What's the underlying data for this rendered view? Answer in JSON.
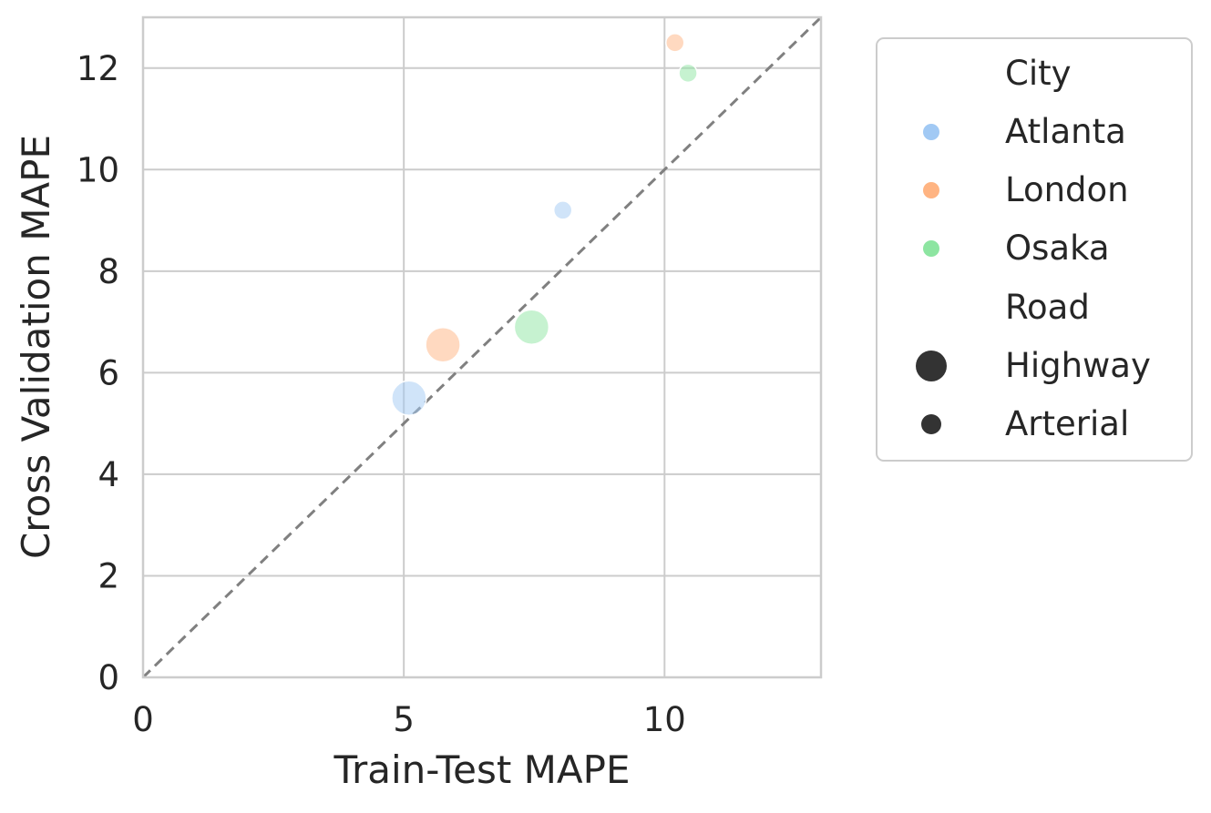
{
  "chart_data": {
    "type": "scatter",
    "xlabel": "Train-Test MAPE",
    "ylabel": "Cross Validation MAPE",
    "xlim": [
      0,
      13
    ],
    "ylim": [
      0,
      13
    ],
    "x_ticks": [
      0,
      5,
      10
    ],
    "y_ticks": [
      0,
      2,
      4,
      6,
      8,
      10,
      12
    ],
    "grid": true,
    "reference_line": {
      "style": "dashed",
      "color": "#808080",
      "from": [
        0,
        0
      ],
      "to": [
        13,
        13
      ]
    },
    "point_opacity": 0.5,
    "hue": {
      "title": "City",
      "levels": [
        {
          "name": "Atlanta",
          "color": "#a1c9f4"
        },
        {
          "name": "London",
          "color": "#ffb482"
        },
        {
          "name": "Osaka",
          "color": "#8de5a1"
        }
      ]
    },
    "size": {
      "title": "Road",
      "levels": [
        {
          "name": "Highway",
          "marker": "large"
        },
        {
          "name": "Arterial",
          "marker": "small"
        }
      ]
    },
    "points": [
      {
        "city": "Atlanta",
        "road": "Highway",
        "x": 5.1,
        "y": 5.5
      },
      {
        "city": "Atlanta",
        "road": "Arterial",
        "x": 8.05,
        "y": 9.2
      },
      {
        "city": "London",
        "road": "Highway",
        "x": 5.75,
        "y": 6.55
      },
      {
        "city": "London",
        "road": "Arterial",
        "x": 10.2,
        "y": 12.5
      },
      {
        "city": "Osaka",
        "road": "Highway",
        "x": 7.45,
        "y": 6.9
      },
      {
        "city": "Osaka",
        "road": "Arterial",
        "x": 10.45,
        "y": 11.9
      }
    ],
    "legend": {
      "placement": "outside-right-top"
    }
  }
}
